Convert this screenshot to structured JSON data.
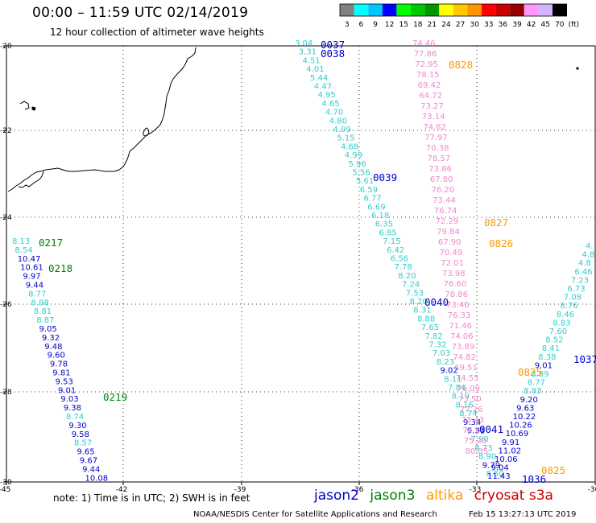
{
  "title": "00:00 – 11:59 UTC 02/14/2019",
  "subtitle": "12 hour collection of altimeter wave heights",
  "colorbar": {
    "unit": "(ft)",
    "bins": [
      {
        "label": "3",
        "color": "#808080"
      },
      {
        "label": "6",
        "color": "#00ffff"
      },
      {
        "label": "9",
        "color": "#00c8ff"
      },
      {
        "label": "12",
        "color": "#0000ff"
      },
      {
        "label": "15",
        "color": "#00ff00"
      },
      {
        "label": "18",
        "color": "#00c800"
      },
      {
        "label": "21",
        "color": "#009600"
      },
      {
        "label": "24",
        "color": "#ffff00"
      },
      {
        "label": "27",
        "color": "#ffc800"
      },
      {
        "label": "30",
        "color": "#ff9600"
      },
      {
        "label": "33",
        "color": "#ff0000"
      },
      {
        "label": "36",
        "color": "#c80000"
      },
      {
        "label": "39",
        "color": "#960000"
      },
      {
        "label": "42",
        "color": "#ff96ff"
      },
      {
        "label": "45",
        "color": "#d2b4ff"
      },
      {
        "label": "70",
        "color": "#000000"
      }
    ]
  },
  "map": {
    "lon_ticks": [
      "-45",
      "-42",
      "-39",
      "-36",
      "-33",
      "-30"
    ],
    "lat_ticks": [
      "-20",
      "-22",
      "-24",
      "-26",
      "-28",
      "-30"
    ],
    "lon_range": [
      -45,
      -30
    ],
    "lat_range": [
      -30,
      -20
    ]
  },
  "colors": {
    "jason2": "#0000cc",
    "jason3": "#008000",
    "altika": "#ff9900",
    "cryosat": "#cc0000",
    "cyan": "#33cccc",
    "pink": "#ee88cc"
  },
  "tracks": [
    {
      "name": "track-left",
      "points": [
        {
          "v": "8.13",
          "c": "cyan"
        },
        {
          "v": "8.54",
          "c": "cyan"
        },
        {
          "v": "10.47",
          "c": "jason2"
        },
        {
          "v": "10.61",
          "c": "jason2"
        },
        {
          "v": "9.97",
          "c": "jason2"
        },
        {
          "v": "9.44",
          "c": "jason2"
        },
        {
          "v": "8.77",
          "c": "cyan"
        },
        {
          "v": "8.98",
          "c": "cyan"
        },
        {
          "v": "8.81",
          "c": "cyan"
        },
        {
          "v": "8.87",
          "c": "cyan"
        },
        {
          "v": "9.05",
          "c": "jason2"
        },
        {
          "v": "9.32",
          "c": "jason2"
        },
        {
          "v": "9.48",
          "c": "jason2"
        },
        {
          "v": "9.60",
          "c": "jason2"
        },
        {
          "v": "9.78",
          "c": "jason2"
        },
        {
          "v": "9.81",
          "c": "jason2"
        },
        {
          "v": "9.53",
          "c": "jason2"
        },
        {
          "v": "9.01",
          "c": "jason2"
        },
        {
          "v": "9.03",
          "c": "jason2"
        },
        {
          "v": "9.38",
          "c": "jason2"
        },
        {
          "v": "8.74",
          "c": "cyan"
        },
        {
          "v": "9.30",
          "c": "jason2"
        },
        {
          "v": "9.58",
          "c": "jason2"
        },
        {
          "v": "8.57",
          "c": "cyan"
        },
        {
          "v": "9.65",
          "c": "jason2"
        },
        {
          "v": "9.67",
          "c": "jason2"
        },
        {
          "v": "9.44",
          "c": "jason2"
        },
        {
          "v": "10.08",
          "c": "jason2"
        }
      ]
    },
    {
      "name": "track-center",
      "points": [
        {
          "v": "3.04",
          "c": "cyan"
        },
        {
          "v": "3.31",
          "c": "cyan"
        },
        {
          "v": "4.51",
          "c": "cyan"
        },
        {
          "v": "4.01",
          "c": "cyan"
        },
        {
          "v": "5.44",
          "c": "cyan"
        },
        {
          "v": "4.47",
          "c": "cyan"
        },
        {
          "v": "4.95",
          "c": "cyan"
        },
        {
          "v": "4.65",
          "c": "cyan"
        },
        {
          "v": "4.70",
          "c": "cyan"
        },
        {
          "v": "4.80",
          "c": "cyan"
        },
        {
          "v": "4.99",
          "c": "cyan"
        },
        {
          "v": "5.15",
          "c": "cyan"
        },
        {
          "v": "4.68",
          "c": "cyan"
        },
        {
          "v": "4.99",
          "c": "cyan"
        },
        {
          "v": "5.96",
          "c": "cyan"
        },
        {
          "v": "5.56",
          "c": "cyan"
        },
        {
          "v": "5.61",
          "c": "cyan"
        },
        {
          "v": "6.59",
          "c": "cyan"
        },
        {
          "v": "6.77",
          "c": "cyan"
        },
        {
          "v": "6.69",
          "c": "cyan"
        },
        {
          "v": "6.18",
          "c": "cyan"
        },
        {
          "v": "6.35",
          "c": "cyan"
        },
        {
          "v": "6.85",
          "c": "cyan"
        },
        {
          "v": "7.15",
          "c": "cyan"
        },
        {
          "v": "6.42",
          "c": "cyan"
        },
        {
          "v": "6.56",
          "c": "cyan"
        },
        {
          "v": "7.78",
          "c": "cyan"
        },
        {
          "v": "8.20",
          "c": "cyan"
        },
        {
          "v": "7.24",
          "c": "cyan"
        },
        {
          "v": "7.53",
          "c": "cyan"
        },
        {
          "v": "8.20",
          "c": "cyan"
        },
        {
          "v": "8.31",
          "c": "cyan"
        },
        {
          "v": "8.88",
          "c": "cyan"
        },
        {
          "v": "7.65",
          "c": "cyan"
        },
        {
          "v": "7.82",
          "c": "cyan"
        },
        {
          "v": "7.32",
          "c": "cyan"
        },
        {
          "v": "7.03",
          "c": "cyan"
        },
        {
          "v": "8.23",
          "c": "cyan"
        },
        {
          "v": "9.02",
          "c": "jason2"
        },
        {
          "v": "8.11",
          "c": "cyan"
        },
        {
          "v": "7.84",
          "c": "cyan"
        },
        {
          "v": "8.19",
          "c": "cyan"
        },
        {
          "v": "8.16",
          "c": "cyan"
        },
        {
          "v": "8.74",
          "c": "cyan"
        },
        {
          "v": "9.34",
          "c": "jason2"
        },
        {
          "v": "9.31",
          "c": "jason2"
        },
        {
          "v": "7.90",
          "c": "cyan"
        },
        {
          "v": "8.73",
          "c": "cyan"
        },
        {
          "v": "8.90",
          "c": "cyan"
        },
        {
          "v": "9.79",
          "c": "jason2"
        },
        {
          "v": "8.50",
          "c": "cyan"
        }
      ]
    },
    {
      "name": "track-pink",
      "points": [
        {
          "v": "74.46",
          "c": "pink"
        },
        {
          "v": "77.86",
          "c": "pink"
        },
        {
          "v": "72.95",
          "c": "pink"
        },
        {
          "v": "78.15",
          "c": "pink"
        },
        {
          "v": "69.42",
          "c": "pink"
        },
        {
          "v": "64.72",
          "c": "pink"
        },
        {
          "v": "73.27",
          "c": "pink"
        },
        {
          "v": "73.14",
          "c": "pink"
        },
        {
          "v": "74.82",
          "c": "pink"
        },
        {
          "v": "77.97",
          "c": "pink"
        },
        {
          "v": "70.38",
          "c": "pink"
        },
        {
          "v": "78.57",
          "c": "pink"
        },
        {
          "v": "73.86",
          "c": "pink"
        },
        {
          "v": "67.80",
          "c": "pink"
        },
        {
          "v": "76.20",
          "c": "pink"
        },
        {
          "v": "73.44",
          "c": "pink"
        },
        {
          "v": "76.74",
          "c": "pink"
        },
        {
          "v": "72.29",
          "c": "pink"
        },
        {
          "v": "79.84",
          "c": "pink"
        },
        {
          "v": "67.90",
          "c": "pink"
        },
        {
          "v": "70.49",
          "c": "pink"
        },
        {
          "v": "72.01",
          "c": "pink"
        },
        {
          "v": "73.98",
          "c": "pink"
        },
        {
          "v": "76.60",
          "c": "pink"
        },
        {
          "v": "78.86",
          "c": "pink"
        },
        {
          "v": "73.40",
          "c": "pink"
        },
        {
          "v": "76.33",
          "c": "pink"
        },
        {
          "v": "71.46",
          "c": "pink"
        },
        {
          "v": "74.06",
          "c": "pink"
        },
        {
          "v": "73.89",
          "c": "pink"
        },
        {
          "v": "74.82",
          "c": "pink"
        },
        {
          "v": "69.51",
          "c": "pink"
        },
        {
          "v": "74.55",
          "c": "pink"
        },
        {
          "v": "76.09",
          "c": "pink"
        },
        {
          "v": "73.50",
          "c": "pink"
        },
        {
          "v": "77.26",
          "c": "pink"
        },
        {
          "v": "73.43",
          "c": "pink"
        },
        {
          "v": "74.65",
          "c": "pink"
        },
        {
          "v": "75.20",
          "c": "pink"
        },
        {
          "v": "80.05",
          "c": "pink"
        }
      ]
    },
    {
      "name": "track-right",
      "points": [
        {
          "v": "4.",
          "c": "cyan"
        },
        {
          "v": "4.8",
          "c": "cyan"
        },
        {
          "v": "4.8",
          "c": "cyan"
        },
        {
          "v": "6.46",
          "c": "cyan"
        },
        {
          "v": "7.23",
          "c": "cyan"
        },
        {
          "v": "6.73",
          "c": "cyan"
        },
        {
          "v": "7.08",
          "c": "cyan"
        },
        {
          "v": "8.76",
          "c": "cyan"
        },
        {
          "v": "8.46",
          "c": "cyan"
        },
        {
          "v": "8.83",
          "c": "cyan"
        },
        {
          "v": "7.60",
          "c": "cyan"
        },
        {
          "v": "8.52",
          "c": "cyan"
        },
        {
          "v": "8.41",
          "c": "cyan"
        },
        {
          "v": "8.38",
          "c": "cyan"
        },
        {
          "v": "9.01",
          "c": "jason2"
        },
        {
          "v": "8.89",
          "c": "cyan"
        },
        {
          "v": "8.77",
          "c": "cyan"
        },
        {
          "v": "8.83",
          "c": "cyan"
        },
        {
          "v": "9.20",
          "c": "jason2"
        },
        {
          "v": "9.63",
          "c": "jason2"
        },
        {
          "v": "10.22",
          "c": "jason2"
        },
        {
          "v": "10.26",
          "c": "jason2"
        },
        {
          "v": "10.69",
          "c": "jason2"
        },
        {
          "v": "9.91",
          "c": "jason2"
        },
        {
          "v": "11.02",
          "c": "jason2"
        },
        {
          "v": "10.06",
          "c": "jason2"
        },
        {
          "v": "9.04",
          "c": "jason2"
        },
        {
          "v": "11.43",
          "c": "jason2"
        }
      ]
    }
  ],
  "time_labels": [
    {
      "t": "0037",
      "c": "jason2"
    },
    {
      "t": "0038",
      "c": "jason2"
    },
    {
      "t": "0039",
      "c": "jason2"
    },
    {
      "t": "0040",
      "c": "jason2"
    },
    {
      "t": "0041",
      "c": "jason2"
    },
    {
      "t": "1036",
      "c": "jason2"
    },
    {
      "t": "1037",
      "c": "jason2"
    },
    {
      "t": "0217",
      "c": "jason3"
    },
    {
      "t": "0218",
      "c": "jason3"
    },
    {
      "t": "0219",
      "c": "jason3"
    },
    {
      "t": "0828",
      "c": "altika"
    },
    {
      "t": "0827",
      "c": "altika"
    },
    {
      "t": "0826",
      "c": "altika"
    },
    {
      "t": "0825",
      "c": "altika"
    },
    {
      "t": "0825",
      "c": "altika"
    }
  ],
  "note": "note: 1) Time is in UTC; 2) SWH is in feet",
  "legend": [
    {
      "label": "jason2",
      "color": "#0000cc"
    },
    {
      "label": "jason3",
      "color": "#008000"
    },
    {
      "label": "altika",
      "color": "#ff9900"
    },
    {
      "label": "cryosat s3a",
      "color": "#cc0000"
    }
  ],
  "footer": {
    "center": "NOAA/NESDIS Center for Satellite Applications and Research",
    "timestamp": "Feb 15 13:27:13 UTC 2019"
  }
}
